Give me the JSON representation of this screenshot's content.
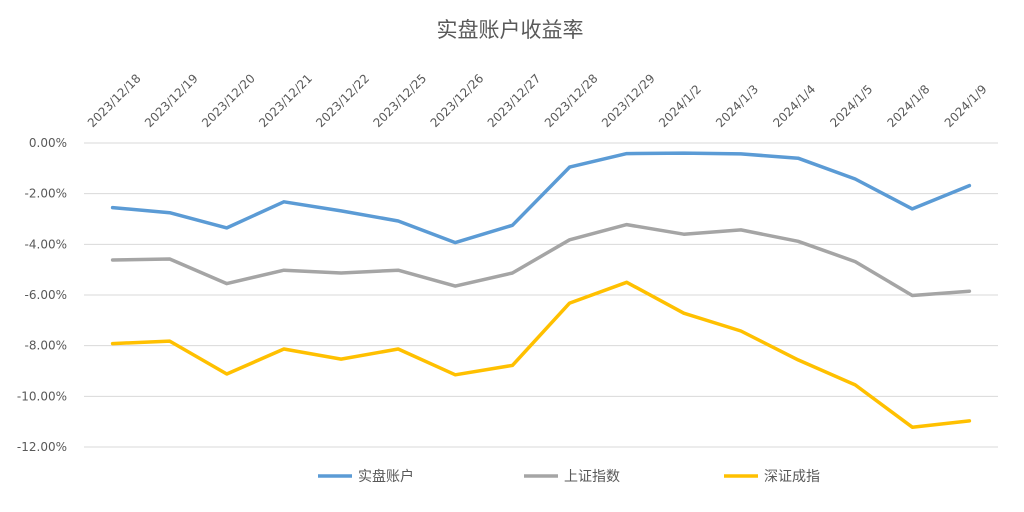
{
  "chart_data": {
    "type": "line",
    "title": "实盘账户收益率",
    "categories": [
      "2023/12/18",
      "2023/12/19",
      "2023/12/20",
      "2023/12/21",
      "2023/12/22",
      "2023/12/25",
      "2023/12/26",
      "2023/12/27",
      "2023/12/28",
      "2023/12/29",
      "2024/1/2",
      "2024/1/3",
      "2024/1/4",
      "2024/1/5",
      "2024/1/8",
      "2024/1/9"
    ],
    "series": [
      {
        "name": "实盘账户",
        "color": "#5B9BD5",
        "values": [
          -2.55,
          -2.75,
          -3.35,
          -2.32,
          -2.68,
          -3.08,
          -3.93,
          -3.25,
          -0.95,
          -0.42,
          -0.4,
          -0.43,
          -0.6,
          -1.42,
          -2.6,
          -1.68
        ]
      },
      {
        "name": "上证指数",
        "color": "#A5A5A5",
        "values": [
          -4.62,
          -4.58,
          -5.55,
          -5.02,
          -5.13,
          -5.02,
          -5.65,
          -5.13,
          -3.82,
          -3.22,
          -3.6,
          -3.43,
          -3.88,
          -4.68,
          -6.02,
          -5.85
        ]
      },
      {
        "name": "深证成指",
        "color": "#FFC000",
        "values": [
          -7.92,
          -7.82,
          -9.12,
          -8.13,
          -8.53,
          -8.13,
          -9.15,
          -8.78,
          -6.32,
          -5.5,
          -6.72,
          -7.42,
          -8.56,
          -9.55,
          -11.22,
          -10.97
        ]
      }
    ],
    "ylim": [
      -12,
      0
    ],
    "yticks": [
      "0.00%",
      "-2.00%",
      "-4.00%",
      "-6.00%",
      "-8.00%",
      "-10.00%",
      "-12.00%"
    ],
    "ytick_values": [
      0,
      -2,
      -4,
      -6,
      -8,
      -10,
      -12
    ],
    "grid": true,
    "legend": "bottom",
    "xlabel": "",
    "ylabel": ""
  }
}
